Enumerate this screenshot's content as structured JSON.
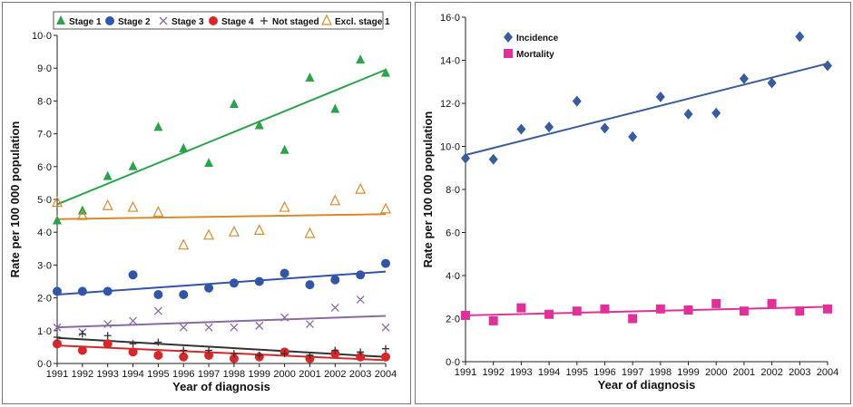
{
  "chart_data": [
    {
      "type": "scatter",
      "xlabel": "Year of diagnosis",
      "ylabel": "Rate per 100 000 population",
      "x": [
        1991,
        1992,
        1993,
        1994,
        1995,
        1996,
        1997,
        1998,
        1999,
        2000,
        2001,
        2002,
        2003,
        2004
      ],
      "xlim": [
        1991,
        2004
      ],
      "ylim": [
        0,
        10
      ],
      "yticks": [
        "0·0",
        "1·0",
        "2·0",
        "3·0",
        "4·0",
        "5·0",
        "6·0",
        "7·0",
        "8·0",
        "9·0",
        "10·0"
      ],
      "legend_position": "top",
      "grid": false,
      "series": [
        {
          "name": "Stage 1",
          "marker": "triangle",
          "color": "#2ca24c",
          "values": [
            4.35,
            4.65,
            5.7,
            6.0,
            7.2,
            6.55,
            6.1,
            7.9,
            7.25,
            6.5,
            8.7,
            7.75,
            9.25,
            8.85
          ],
          "trend": [
            4.85,
            8.95
          ]
        },
        {
          "name": "Stage 2",
          "marker": "circle",
          "color": "#3355a6",
          "values": [
            2.2,
            2.2,
            2.2,
            2.7,
            2.1,
            2.1,
            2.3,
            2.45,
            2.5,
            2.75,
            2.4,
            2.55,
            2.7,
            3.05
          ],
          "trend": [
            2.1,
            2.8
          ]
        },
        {
          "name": "Stage 3",
          "marker": "x",
          "color": "#8a6aa0",
          "values": [
            1.1,
            0.95,
            1.2,
            1.3,
            1.6,
            1.1,
            1.1,
            1.1,
            1.15,
            1.4,
            1.2,
            1.7,
            1.95,
            1.1
          ],
          "trend": [
            1.1,
            1.45
          ]
        },
        {
          "name": "Stage 4",
          "marker": "circle",
          "color": "#d6282b",
          "values": [
            0.6,
            0.4,
            0.6,
            0.35,
            0.25,
            0.2,
            0.25,
            0.15,
            0.2,
            0.35,
            0.15,
            0.3,
            0.2,
            0.2
          ],
          "trend": [
            0.55,
            0.1
          ]
        },
        {
          "name": "Not staged",
          "marker": "plus",
          "color": "#333333",
          "values": [
            0.8,
            0.9,
            0.85,
            0.6,
            0.65,
            0.4,
            0.4,
            0.3,
            0.25,
            0.3,
            0.25,
            0.4,
            0.35,
            0.45
          ],
          "trend": [
            0.78,
            0.2
          ]
        },
        {
          "name": "Excl. stage 1",
          "marker": "triangle-open",
          "color": "#d98a2e",
          "values": [
            4.9,
            4.5,
            4.8,
            4.75,
            4.6,
            3.6,
            3.9,
            4.0,
            4.05,
            4.75,
            3.95,
            4.95,
            5.3,
            4.7
          ],
          "trend": [
            4.4,
            4.55
          ]
        }
      ]
    },
    {
      "type": "scatter",
      "xlabel": "Year of diagnosis",
      "ylabel": "Rate per 100 000 population",
      "x": [
        1991,
        1992,
        1993,
        1994,
        1995,
        1996,
        1997,
        1998,
        1999,
        2000,
        2001,
        2002,
        2003,
        2004
      ],
      "xlim": [
        1991,
        2004
      ],
      "ylim": [
        0,
        16
      ],
      "yticks": [
        "0·0",
        "2·0",
        "4·0",
        "6·0",
        "8·0",
        "10·0",
        "12·0",
        "14·0",
        "16·0"
      ],
      "legend_position": "top-left",
      "grid": false,
      "series": [
        {
          "name": "Incidence",
          "marker": "diamond",
          "color": "#3a5b9c",
          "values": [
            9.45,
            9.4,
            10.8,
            10.9,
            12.1,
            10.85,
            10.45,
            12.3,
            11.5,
            11.55,
            13.15,
            12.95,
            15.1,
            13.75
          ],
          "trend": [
            9.6,
            13.85
          ]
        },
        {
          "name": "Mortality",
          "marker": "square",
          "color": "#e0309a",
          "values": [
            2.15,
            1.9,
            2.5,
            2.2,
            2.35,
            2.45,
            2.0,
            2.45,
            2.4,
            2.7,
            2.35,
            2.7,
            2.35,
            2.45
          ],
          "trend": [
            2.15,
            2.55
          ]
        }
      ]
    }
  ]
}
